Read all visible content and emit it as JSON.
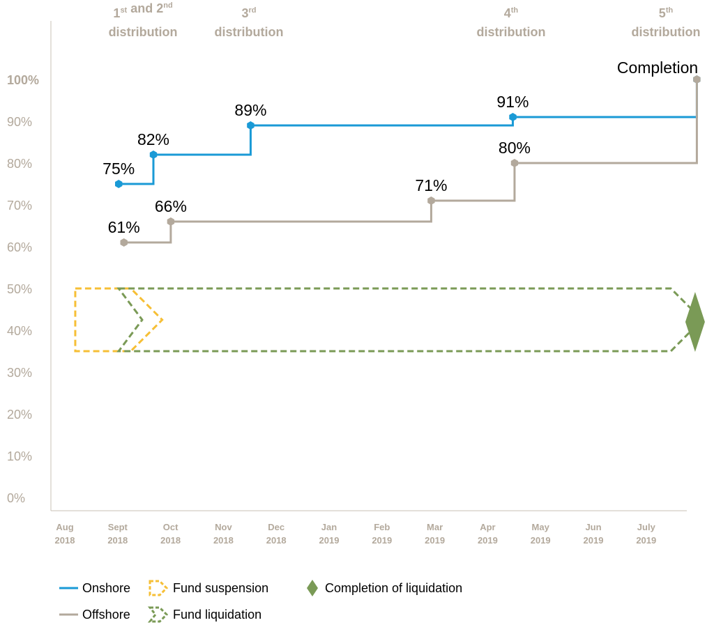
{
  "chart_data": {
    "type": "line",
    "step": true,
    "title": "",
    "xlabel": "",
    "ylabel": "",
    "ylim": [
      0,
      100
    ],
    "yticks": [
      "0%",
      "10%",
      "20%",
      "30%",
      "40%",
      "50%",
      "60%",
      "70%",
      "80%",
      "90%",
      "100%"
    ],
    "xticks": [
      {
        "month": "Aug",
        "year": "2018"
      },
      {
        "month": "Sept",
        "year": "2018"
      },
      {
        "month": "Oct",
        "year": "2018"
      },
      {
        "month": "Nov",
        "year": "2018"
      },
      {
        "month": "Dec",
        "year": "2018"
      },
      {
        "month": "Jan",
        "year": "2019"
      },
      {
        "month": "Feb",
        "year": "2019"
      },
      {
        "month": "Mar",
        "year": "2019"
      },
      {
        "month": "Apr",
        "year": "2019"
      },
      {
        "month": "May",
        "year": "2019"
      },
      {
        "month": "Jun",
        "year": "2019"
      },
      {
        "month": "July",
        "year": "2019"
      }
    ],
    "distributions": [
      {
        "lines": [
          [
            {
              "t": "1"
            },
            {
              "t": "st",
              "sup": true
            },
            {
              "t": " and 2"
            },
            {
              "t": "nd",
              "sup": true
            }
          ],
          [
            {
              "t": "distribution"
            }
          ]
        ],
        "date": "2018-09-15"
      },
      {
        "lines": [
          [
            {
              "t": "3"
            },
            {
              "t": "rd",
              "sup": true
            }
          ],
          [
            {
              "t": "distribution"
            }
          ]
        ],
        "date": "2018-11-15"
      },
      {
        "lines": [
          [
            {
              "t": "4"
            },
            {
              "t": "th",
              "sup": true
            }
          ],
          [
            {
              "t": "distribution"
            }
          ]
        ],
        "date": "2019-04-15"
      },
      {
        "lines": [
          [
            {
              "t": "5"
            },
            {
              "t": "th",
              "sup": true
            }
          ],
          [
            {
              "t": "distribution"
            }
          ]
        ],
        "date": "2019-07-28"
      }
    ],
    "series": [
      {
        "name": "Onshore",
        "color": "#1a9ad6",
        "points": [
          {
            "x": "2018-09-01",
            "y": 75,
            "label": "75%"
          },
          {
            "x": "2018-09-21",
            "y": 82,
            "label": "82%"
          },
          {
            "x": "2018-11-16",
            "y": 89,
            "label": "89%"
          },
          {
            "x": "2019-04-16",
            "y": 91,
            "label": "91%"
          },
          {
            "x": "2019-07-31",
            "y": 100,
            "label": ""
          }
        ]
      },
      {
        "name": "Offshore",
        "color": "#b3a99c",
        "points": [
          {
            "x": "2018-09-04",
            "y": 61,
            "label": "61%"
          },
          {
            "x": "2018-10-01",
            "y": 66,
            "label": "66%"
          },
          {
            "x": "2019-02-28",
            "y": 71,
            "label": "71%"
          },
          {
            "x": "2019-04-17",
            "y": 80,
            "label": "80%"
          },
          {
            "x": "2019-07-31",
            "y": 100,
            "label": ""
          }
        ]
      }
    ],
    "completion_label": "Completion",
    "fund_suspension": {
      "name": "Fund suspension",
      "start": "2018-08-07",
      "end": "2018-09-08",
      "ylow": 35,
      "yhigh": 50,
      "color": "#f6bf36"
    },
    "fund_liquidation": {
      "name": "Fund liquidation",
      "start": "2018-09-01",
      "end": "2019-07-16",
      "ylow": 35,
      "yhigh": 50,
      "color": "#7a9a56"
    },
    "completion_of_liquidation": {
      "name": "Completion of liquidation",
      "date": "2019-07-30",
      "y": 42,
      "color": "#7a9a56"
    },
    "legend": [
      {
        "name": "Onshore",
        "kind": "line",
        "color": "#1a9ad6"
      },
      {
        "name": "Fund suspension",
        "kind": "suspension-chevron",
        "color": "#f6bf36"
      },
      {
        "name": "Completion of liquidation",
        "kind": "diamond",
        "color": "#7a9a56"
      },
      {
        "name": "Offshore",
        "kind": "line",
        "color": "#b3a99c"
      },
      {
        "name": "Fund liquidation",
        "kind": "liquidation-chevron",
        "color": "#7a9a56"
      }
    ],
    "legend_position": "bottom-left",
    "grid": false
  }
}
